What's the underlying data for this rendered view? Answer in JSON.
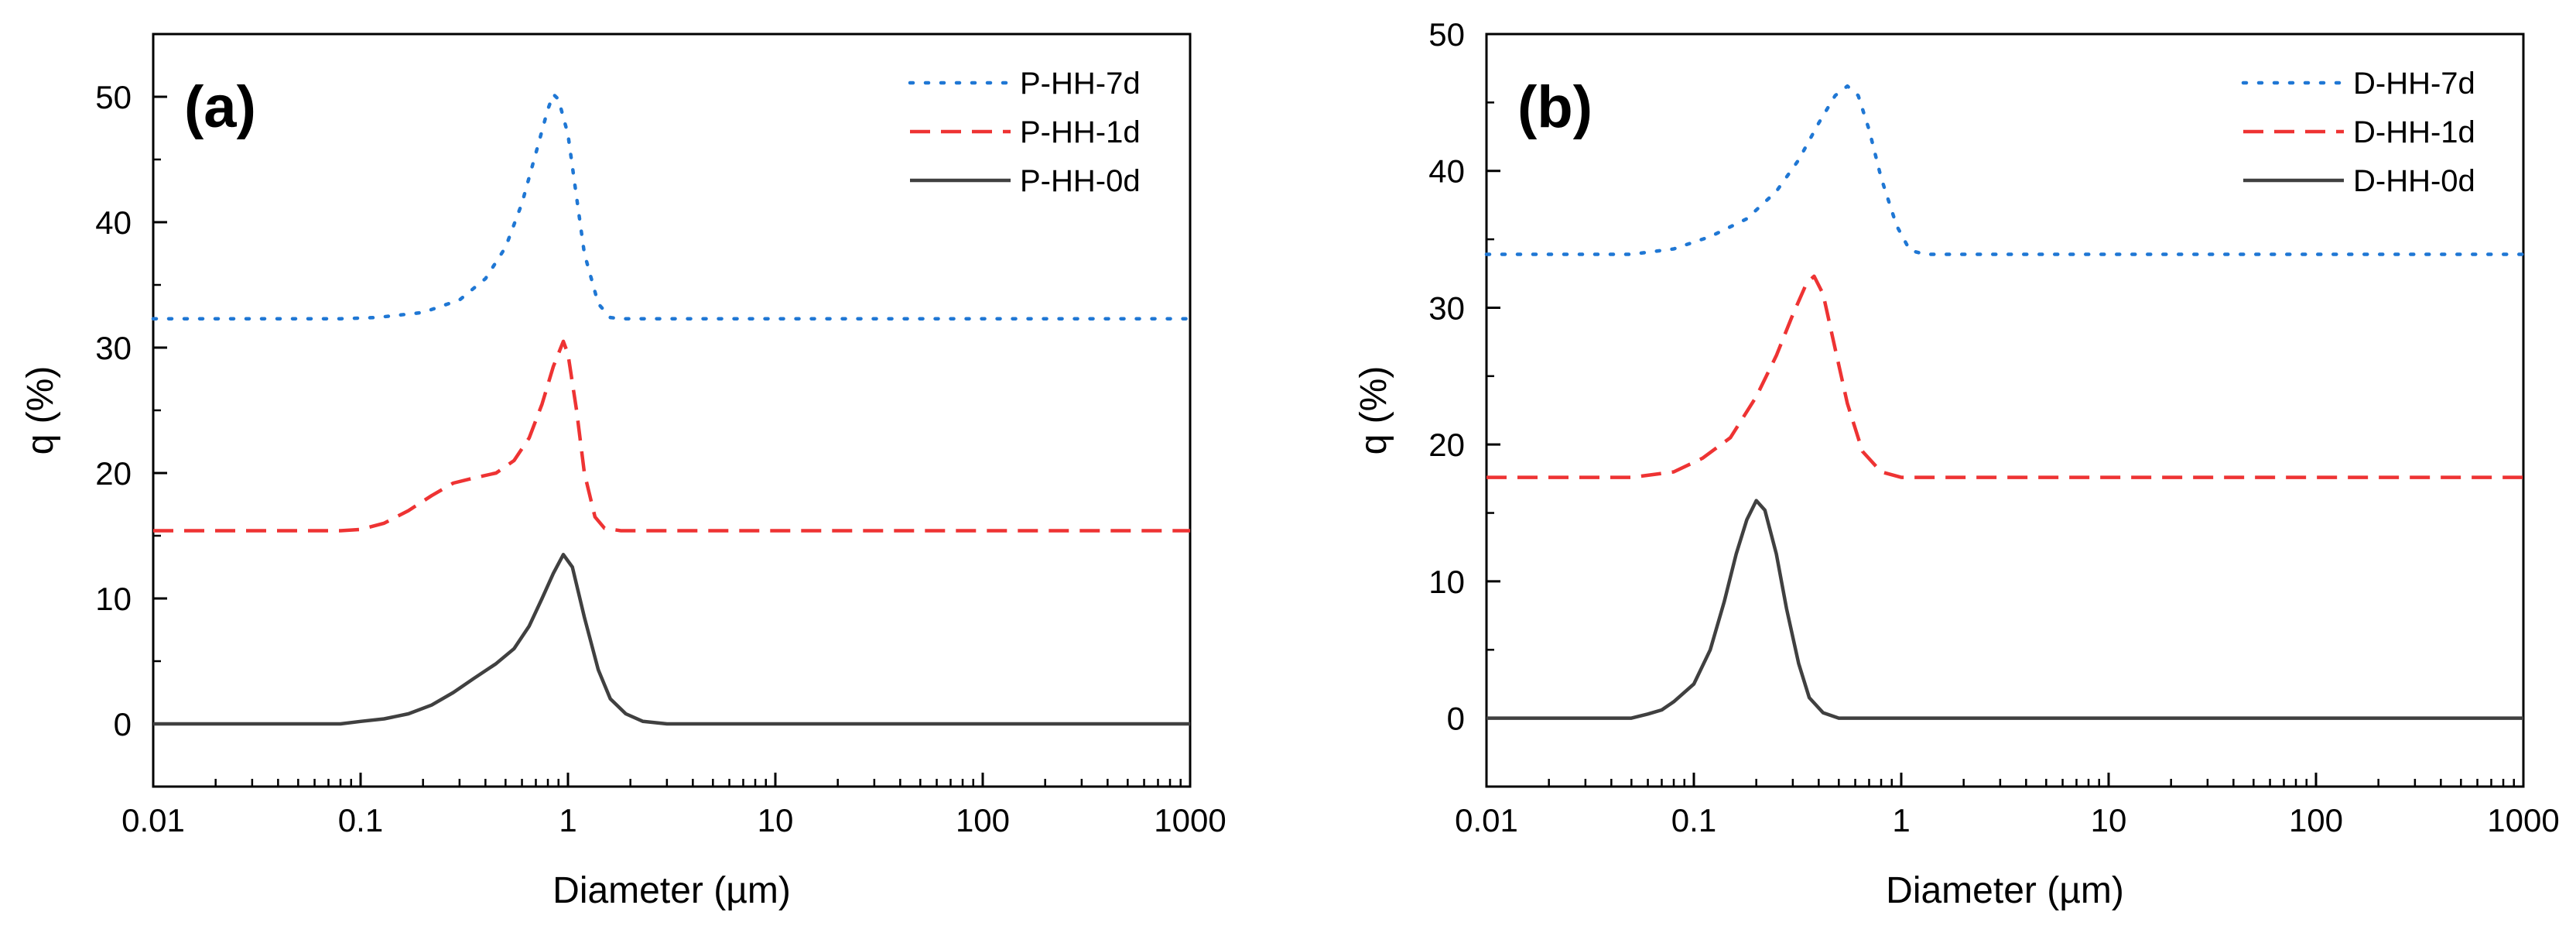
{
  "chart_data": [
    {
      "type": "line",
      "panel_label": "(a)",
      "xlabel": "Diameter (µm)",
      "ylabel": "q (%)",
      "xscale": "log",
      "xlim": [
        0.01,
        1000
      ],
      "ylim": [
        -5,
        55
      ],
      "xticks": [
        0.01,
        0.1,
        1,
        10,
        100,
        1000
      ],
      "xtick_labels": [
        "0.01",
        "0.1",
        "1",
        "10",
        "100",
        "1000"
      ],
      "yticks": [
        0,
        10,
        20,
        30,
        40,
        50
      ],
      "ytick_labels": [
        "0",
        "10",
        "20",
        "30",
        "40",
        "50"
      ],
      "grid": false,
      "legend_position": "top-right",
      "series": [
        {
          "name": "P-HH-7d",
          "color": "#1f77d4",
          "style": "dotted",
          "points": [
            [
              0.01,
              32.3
            ],
            [
              0.08,
              32.3
            ],
            [
              0.12,
              32.4
            ],
            [
              0.2,
              32.8
            ],
            [
              0.3,
              33.8
            ],
            [
              0.4,
              35.5
            ],
            [
              0.5,
              38.0
            ],
            [
              0.6,
              41.5
            ],
            [
              0.7,
              45.5
            ],
            [
              0.8,
              49.0
            ],
            [
              0.85,
              50.2
            ],
            [
              0.9,
              49.8
            ],
            [
              1.0,
              47.0
            ],
            [
              1.1,
              42.0
            ],
            [
              1.2,
              37.5
            ],
            [
              1.4,
              33.5
            ],
            [
              1.6,
              32.4
            ],
            [
              1.8,
              32.3
            ],
            [
              10,
              32.3
            ],
            [
              100,
              32.3
            ],
            [
              1000,
              32.3
            ]
          ]
        },
        {
          "name": "P-HH-1d",
          "color": "#ee3333",
          "style": "dashed",
          "points": [
            [
              0.01,
              15.4
            ],
            [
              0.08,
              15.4
            ],
            [
              0.1,
              15.5
            ],
            [
              0.13,
              16.0
            ],
            [
              0.17,
              17.0
            ],
            [
              0.22,
              18.2
            ],
            [
              0.28,
              19.2
            ],
            [
              0.35,
              19.6
            ],
            [
              0.45,
              20.0
            ],
            [
              0.55,
              21.0
            ],
            [
              0.65,
              22.8
            ],
            [
              0.75,
              25.5
            ],
            [
              0.85,
              28.5
            ],
            [
              0.95,
              30.5
            ],
            [
              1.0,
              29.5
            ],
            [
              1.1,
              25.0
            ],
            [
              1.2,
              20.0
            ],
            [
              1.35,
              16.5
            ],
            [
              1.5,
              15.6
            ],
            [
              1.8,
              15.4
            ],
            [
              10,
              15.4
            ],
            [
              100,
              15.4
            ],
            [
              1000,
              15.4
            ]
          ]
        },
        {
          "name": "P-HH-0d",
          "color": "#404040",
          "style": "solid",
          "points": [
            [
              0.01,
              0
            ],
            [
              0.08,
              0
            ],
            [
              0.1,
              0.2
            ],
            [
              0.13,
              0.4
            ],
            [
              0.17,
              0.8
            ],
            [
              0.22,
              1.5
            ],
            [
              0.28,
              2.5
            ],
            [
              0.35,
              3.6
            ],
            [
              0.45,
              4.8
            ],
            [
              0.55,
              6.0
            ],
            [
              0.65,
              7.8
            ],
            [
              0.75,
              10.0
            ],
            [
              0.85,
              12.0
            ],
            [
              0.95,
              13.5
            ],
            [
              1.05,
              12.5
            ],
            [
              1.2,
              8.5
            ],
            [
              1.4,
              4.3
            ],
            [
              1.6,
              2.0
            ],
            [
              1.9,
              0.8
            ],
            [
              2.3,
              0.2
            ],
            [
              3.0,
              0
            ],
            [
              10,
              0
            ],
            [
              100,
              0
            ],
            [
              1000,
              0
            ]
          ]
        }
      ]
    },
    {
      "type": "line",
      "panel_label": "(b)",
      "xlabel": "Diameter (µm)",
      "ylabel": "q (%)",
      "xscale": "log",
      "xlim": [
        0.01,
        1000
      ],
      "ylim": [
        -5,
        50
      ],
      "xticks": [
        0.01,
        0.1,
        1,
        10,
        100,
        1000
      ],
      "xtick_labels": [
        "0.01",
        "0.1",
        "1",
        "10",
        "100",
        "1000"
      ],
      "yticks": [
        0,
        10,
        20,
        30,
        40,
        50
      ],
      "ytick_labels": [
        "0",
        "10",
        "20",
        "30",
        "40",
        "50"
      ],
      "grid": false,
      "legend_position": "top-right",
      "series": [
        {
          "name": "D-HH-7d",
          "color": "#1f77d4",
          "style": "dotted",
          "points": [
            [
              0.01,
              33.9
            ],
            [
              0.05,
              33.9
            ],
            [
              0.08,
              34.3
            ],
            [
              0.12,
              35.2
            ],
            [
              0.18,
              36.5
            ],
            [
              0.25,
              38.5
            ],
            [
              0.32,
              40.8
            ],
            [
              0.4,
              43.5
            ],
            [
              0.48,
              45.5
            ],
            [
              0.55,
              46.2
            ],
            [
              0.62,
              45.5
            ],
            [
              0.7,
              43.0
            ],
            [
              0.8,
              39.5
            ],
            [
              0.95,
              36.0
            ],
            [
              1.1,
              34.2
            ],
            [
              1.3,
              33.9
            ],
            [
              10,
              33.9
            ],
            [
              100,
              33.9
            ],
            [
              1000,
              33.9
            ]
          ]
        },
        {
          "name": "D-HH-1d",
          "color": "#ee3333",
          "style": "dashed",
          "points": [
            [
              0.01,
              17.6
            ],
            [
              0.05,
              17.6
            ],
            [
              0.08,
              18.0
            ],
            [
              0.11,
              19.0
            ],
            [
              0.15,
              20.5
            ],
            [
              0.2,
              23.5
            ],
            [
              0.25,
              26.5
            ],
            [
              0.3,
              29.5
            ],
            [
              0.35,
              31.8
            ],
            [
              0.38,
              32.3
            ],
            [
              0.42,
              31.0
            ],
            [
              0.48,
              27.0
            ],
            [
              0.55,
              23.0
            ],
            [
              0.65,
              19.5
            ],
            [
              0.8,
              18.0
            ],
            [
              1.0,
              17.6
            ],
            [
              10,
              17.6
            ],
            [
              100,
              17.6
            ],
            [
              1000,
              17.6
            ]
          ]
        },
        {
          "name": "D-HH-0d",
          "color": "#404040",
          "style": "solid",
          "points": [
            [
              0.01,
              0
            ],
            [
              0.05,
              0
            ],
            [
              0.06,
              0.3
            ],
            [
              0.07,
              0.6
            ],
            [
              0.08,
              1.2
            ],
            [
              0.1,
              2.5
            ],
            [
              0.12,
              5.0
            ],
            [
              0.14,
              8.5
            ],
            [
              0.16,
              12.0
            ],
            [
              0.18,
              14.5
            ],
            [
              0.2,
              15.9
            ],
            [
              0.22,
              15.2
            ],
            [
              0.25,
              12.0
            ],
            [
              0.28,
              8.0
            ],
            [
              0.32,
              4.0
            ],
            [
              0.36,
              1.5
            ],
            [
              0.42,
              0.4
            ],
            [
              0.5,
              0
            ],
            [
              10,
              0
            ],
            [
              100,
              0
            ],
            [
              1000,
              0
            ]
          ]
        }
      ]
    }
  ]
}
